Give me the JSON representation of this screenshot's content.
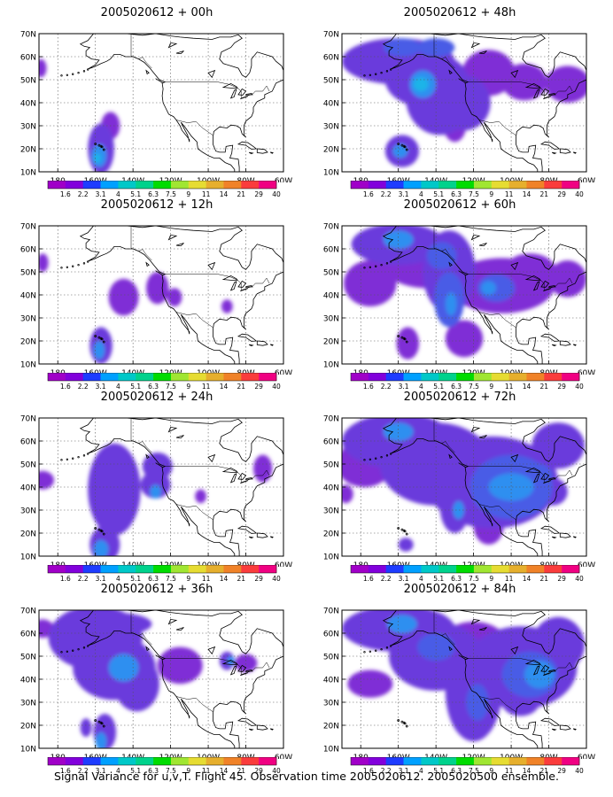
{
  "panels": [
    {
      "title": "2005020612 + 00h"
    },
    {
      "title": "2005020612 + 48h"
    },
    {
      "title": "2005020612 + 12h"
    },
    {
      "title": "2005020612 + 60h"
    },
    {
      "title": "2005020612 + 24h"
    },
    {
      "title": "2005020612 + 72h"
    },
    {
      "title": "2005020612 + 36h"
    },
    {
      "title": "2005020612 + 84h"
    }
  ],
  "lat_labels": [
    "70N",
    "60N",
    "50N",
    "40N",
    "30N",
    "20N",
    "10N"
  ],
  "lon_labels": [
    "180",
    "160W",
    "140W",
    "120W",
    "100W",
    "80W",
    "60W"
  ],
  "colorbar": {
    "values": [
      "1.6",
      "2.2",
      "3.1",
      "4",
      "5.1",
      "6.3",
      "7.5",
      "9",
      "11",
      "14",
      "21",
      "29",
      "40"
    ],
    "colors": [
      "#a000c8",
      "#8200dc",
      "#1e3cff",
      "#00a0ff",
      "#00c8c8",
      "#00d28c",
      "#00dc00",
      "#a0e632",
      "#e6dc32",
      "#e6af2d",
      "#f08228",
      "#fa3c3c",
      "#f00082"
    ]
  },
  "field_colors": [
    "#9b30e0",
    "#7f2fd6",
    "#6a3bdc",
    "#4a5ce6",
    "#2f8ff0",
    "#1fb4e8"
  ],
  "caption": "Signal Variance for u,v,T. Flight 45. Observation time 2005020612. 2005020500 ensemble."
}
